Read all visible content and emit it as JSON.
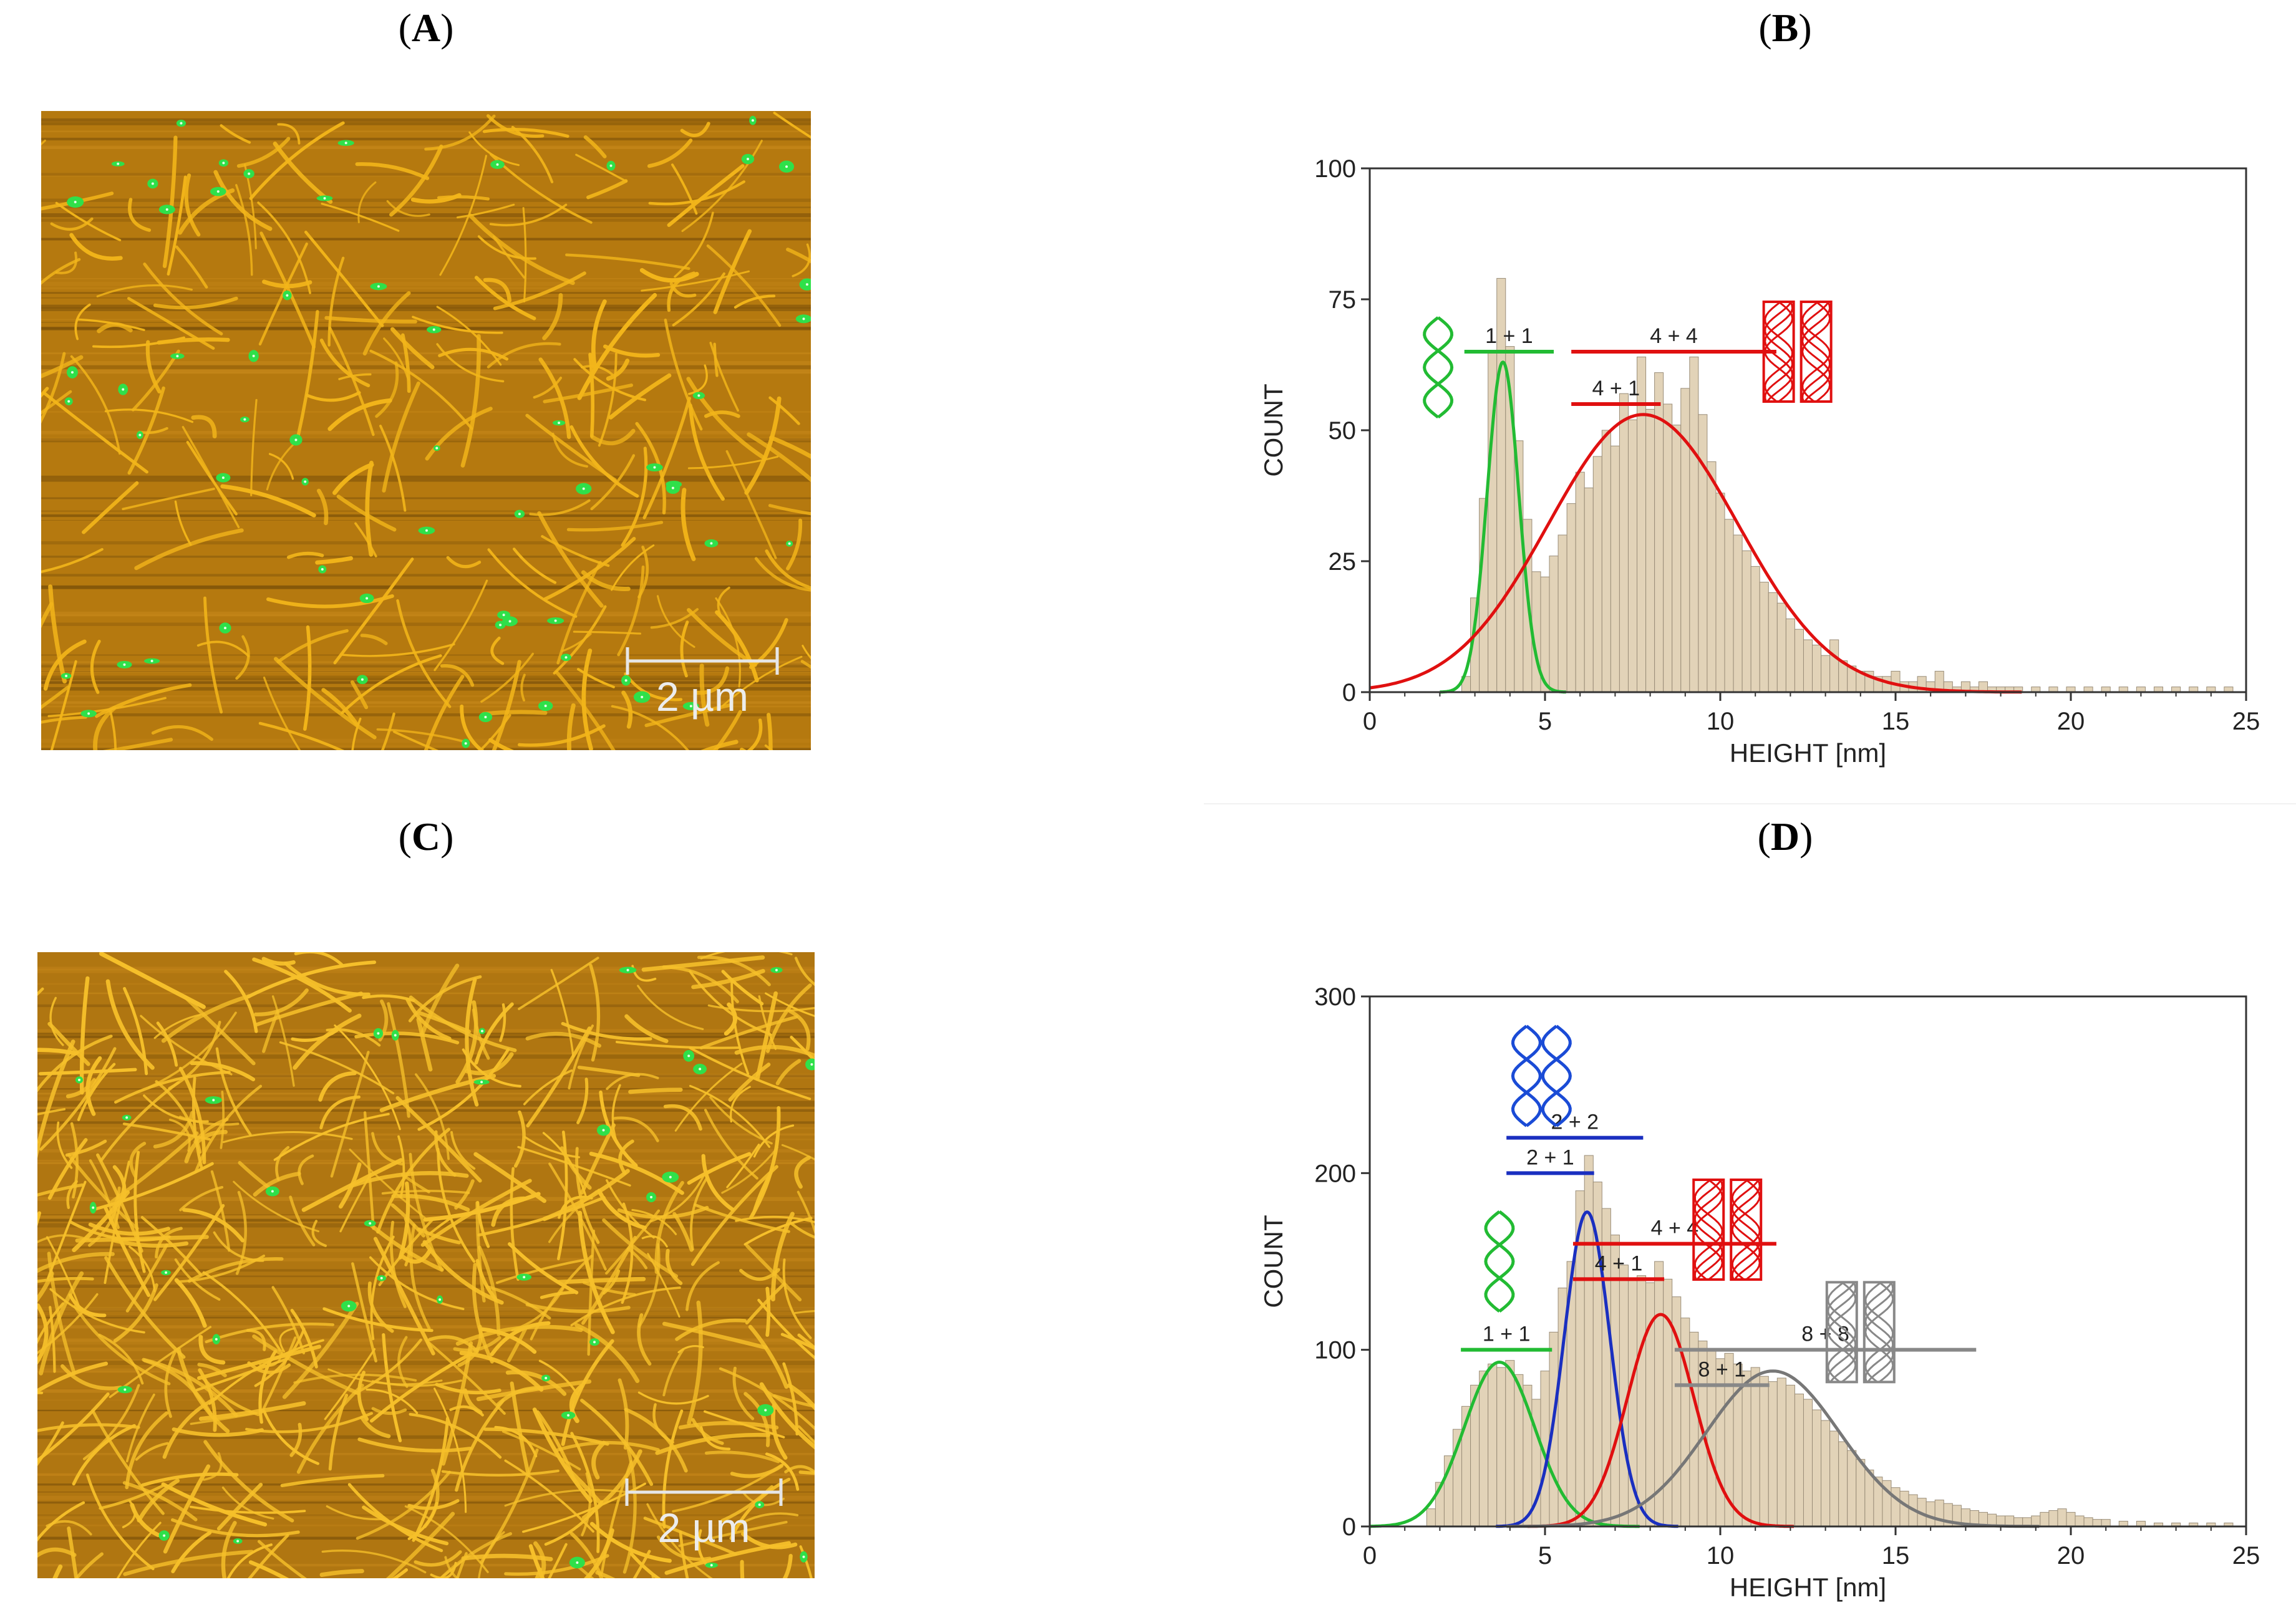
{
  "panels": {
    "A": {
      "open": "(",
      "letter": "A",
      "close": ")"
    },
    "B": {
      "open": "(",
      "letter": "B",
      "close": ")"
    },
    "C": {
      "open": "(",
      "letter": "C",
      "close": ")"
    },
    "D": {
      "open": "(",
      "letter": "D",
      "close": ")"
    }
  },
  "afm_A": {
    "scale_bar_label": "2 µm",
    "background_color": "#b5790f",
    "fibril_color": "#f2b51a",
    "highlight_color": "#2fe04a"
  },
  "afm_C": {
    "scale_bar_label": "2 µm",
    "background_color": "#b07611",
    "fibril_color": "#f6c02a",
    "highlight_color": "#2fe04a"
  },
  "chart_data": [
    {
      "panel": "B",
      "type": "bar",
      "xlabel": "HEIGHT  [nm]",
      "ylabel": "COUNT",
      "xlim": [
        0,
        25
      ],
      "ylim": [
        0,
        100
      ],
      "xticks": [
        0,
        5,
        10,
        15,
        20,
        25
      ],
      "yticks": [
        0,
        25,
        50,
        75,
        100
      ],
      "bin_width": 0.25,
      "bar_color": "#e2d3b8",
      "bins": [
        {
          "x": 2.75,
          "y": 3
        },
        {
          "x": 3.0,
          "y": 18
        },
        {
          "x": 3.25,
          "y": 37
        },
        {
          "x": 3.5,
          "y": 65
        },
        {
          "x": 3.75,
          "y": 79
        },
        {
          "x": 4.0,
          "y": 66
        },
        {
          "x": 4.25,
          "y": 48
        },
        {
          "x": 4.5,
          "y": 33
        },
        {
          "x": 4.75,
          "y": 23
        },
        {
          "x": 5.0,
          "y": 22
        },
        {
          "x": 5.25,
          "y": 26
        },
        {
          "x": 5.5,
          "y": 30
        },
        {
          "x": 5.75,
          "y": 36
        },
        {
          "x": 6.0,
          "y": 42
        },
        {
          "x": 6.25,
          "y": 39
        },
        {
          "x": 6.5,
          "y": 45
        },
        {
          "x": 6.75,
          "y": 50
        },
        {
          "x": 7.0,
          "y": 47
        },
        {
          "x": 7.25,
          "y": 57
        },
        {
          "x": 7.5,
          "y": 52
        },
        {
          "x": 7.75,
          "y": 64
        },
        {
          "x": 8.0,
          "y": 54
        },
        {
          "x": 8.25,
          "y": 61
        },
        {
          "x": 8.5,
          "y": 55
        },
        {
          "x": 8.75,
          "y": 51
        },
        {
          "x": 9.0,
          "y": 58
        },
        {
          "x": 9.25,
          "y": 64
        },
        {
          "x": 9.5,
          "y": 53
        },
        {
          "x": 9.75,
          "y": 44
        },
        {
          "x": 10.0,
          "y": 38
        },
        {
          "x": 10.25,
          "y": 33
        },
        {
          "x": 10.5,
          "y": 30
        },
        {
          "x": 10.75,
          "y": 27
        },
        {
          "x": 11.0,
          "y": 24
        },
        {
          "x": 11.25,
          "y": 21
        },
        {
          "x": 11.5,
          "y": 19
        },
        {
          "x": 11.75,
          "y": 17
        },
        {
          "x": 12.0,
          "y": 14
        },
        {
          "x": 12.25,
          "y": 12
        },
        {
          "x": 12.5,
          "y": 10
        },
        {
          "x": 12.75,
          "y": 9
        },
        {
          "x": 13.0,
          "y": 7
        },
        {
          "x": 13.25,
          "y": 10
        },
        {
          "x": 13.5,
          "y": 6
        },
        {
          "x": 13.75,
          "y": 5
        },
        {
          "x": 14.0,
          "y": 4
        },
        {
          "x": 14.25,
          "y": 4
        },
        {
          "x": 14.5,
          "y": 3
        },
        {
          "x": 14.75,
          "y": 3
        },
        {
          "x": 15.0,
          "y": 4
        },
        {
          "x": 15.25,
          "y": 2
        },
        {
          "x": 15.5,
          "y": 2
        },
        {
          "x": 15.75,
          "y": 3
        },
        {
          "x": 16.0,
          "y": 2
        },
        {
          "x": 16.25,
          "y": 4
        },
        {
          "x": 16.5,
          "y": 2
        },
        {
          "x": 16.75,
          "y": 1
        },
        {
          "x": 17.0,
          "y": 2
        },
        {
          "x": 17.25,
          "y": 1
        },
        {
          "x": 17.5,
          "y": 2
        },
        {
          "x": 17.75,
          "y": 1
        },
        {
          "x": 18.0,
          "y": 1
        },
        {
          "x": 18.25,
          "y": 1
        },
        {
          "x": 18.5,
          "y": 1
        },
        {
          "x": 19.0,
          "y": 1
        },
        {
          "x": 19.5,
          "y": 1
        },
        {
          "x": 20.0,
          "y": 1
        },
        {
          "x": 20.5,
          "y": 1
        },
        {
          "x": 21.0,
          "y": 1
        },
        {
          "x": 21.5,
          "y": 1
        },
        {
          "x": 22.0,
          "y": 1
        },
        {
          "x": 22.5,
          "y": 1
        },
        {
          "x": 23.0,
          "y": 1
        },
        {
          "x": 23.5,
          "y": 1
        },
        {
          "x": 24.0,
          "y": 1
        },
        {
          "x": 24.5,
          "y": 1
        }
      ],
      "fits": [
        {
          "color": "#22bb33",
          "mean": 3.8,
          "sigma": 0.45,
          "amp": 63
        },
        {
          "color": "#e01010",
          "mean": 7.8,
          "sigma": 2.7,
          "amp": 53
        }
      ],
      "fit_lines": [
        {
          "color": "#22bb33",
          "x0": 2.7,
          "x1": 5.25,
          "y": 65,
          "label": "1 + 1"
        },
        {
          "color": "#e01010",
          "x0": 5.75,
          "x1": 11.6,
          "y": 65,
          "label": "4 + 4"
        },
        {
          "color": "#e01010",
          "x0": 5.75,
          "x1": 8.3,
          "y": 55,
          "label": "4 + 1"
        }
      ],
      "icons": [
        {
          "kind": "single-helix",
          "color": "#22bb33",
          "x": 1.95,
          "y": 62
        },
        {
          "kind": "bundle",
          "color": "#e01010",
          "x": 12.2,
          "y": 65
        }
      ]
    },
    {
      "panel": "D",
      "type": "bar",
      "xlabel": "HEIGHT  [nm]",
      "ylabel": "COUNT",
      "xlim": [
        0,
        25
      ],
      "ylim": [
        0,
        300
      ],
      "xticks": [
        0,
        5,
        10,
        15,
        20,
        25
      ],
      "yticks": [
        0,
        100,
        200,
        300
      ],
      "bin_width": 0.25,
      "bar_color": "#e2d3b8",
      "bins": [
        {
          "x": 1.75,
          "y": 10
        },
        {
          "x": 2.0,
          "y": 25
        },
        {
          "x": 2.25,
          "y": 40
        },
        {
          "x": 2.5,
          "y": 55
        },
        {
          "x": 2.75,
          "y": 68
        },
        {
          "x": 3.0,
          "y": 80
        },
        {
          "x": 3.25,
          "y": 88
        },
        {
          "x": 3.5,
          "y": 92
        },
        {
          "x": 3.75,
          "y": 90
        },
        {
          "x": 4.0,
          "y": 94
        },
        {
          "x": 4.25,
          "y": 86
        },
        {
          "x": 4.5,
          "y": 80
        },
        {
          "x": 4.75,
          "y": 72
        },
        {
          "x": 5.0,
          "y": 88
        },
        {
          "x": 5.25,
          "y": 110
        },
        {
          "x": 5.5,
          "y": 135
        },
        {
          "x": 5.75,
          "y": 150
        },
        {
          "x": 6.0,
          "y": 190
        },
        {
          "x": 6.25,
          "y": 210
        },
        {
          "x": 6.5,
          "y": 195
        },
        {
          "x": 6.75,
          "y": 180
        },
        {
          "x": 7.0,
          "y": 165
        },
        {
          "x": 7.25,
          "y": 148
        },
        {
          "x": 7.5,
          "y": 140
        },
        {
          "x": 7.75,
          "y": 142
        },
        {
          "x": 8.0,
          "y": 138
        },
        {
          "x": 8.25,
          "y": 150
        },
        {
          "x": 8.5,
          "y": 140
        },
        {
          "x": 8.75,
          "y": 130
        },
        {
          "x": 9.0,
          "y": 118
        },
        {
          "x": 9.25,
          "y": 110
        },
        {
          "x": 9.5,
          "y": 105
        },
        {
          "x": 9.75,
          "y": 100
        },
        {
          "x": 10.0,
          "y": 95
        },
        {
          "x": 10.25,
          "y": 98
        },
        {
          "x": 10.5,
          "y": 92
        },
        {
          "x": 10.75,
          "y": 88
        },
        {
          "x": 11.0,
          "y": 90
        },
        {
          "x": 11.25,
          "y": 85
        },
        {
          "x": 11.5,
          "y": 82
        },
        {
          "x": 11.75,
          "y": 84
        },
        {
          "x": 12.0,
          "y": 80
        },
        {
          "x": 12.25,
          "y": 75
        },
        {
          "x": 12.5,
          "y": 72
        },
        {
          "x": 12.75,
          "y": 66
        },
        {
          "x": 13.0,
          "y": 60
        },
        {
          "x": 13.25,
          "y": 54
        },
        {
          "x": 13.5,
          "y": 48
        },
        {
          "x": 13.75,
          "y": 43
        },
        {
          "x": 14.0,
          "y": 38
        },
        {
          "x": 14.25,
          "y": 32
        },
        {
          "x": 14.5,
          "y": 28
        },
        {
          "x": 14.75,
          "y": 26
        },
        {
          "x": 15.0,
          "y": 22
        },
        {
          "x": 15.25,
          "y": 20
        },
        {
          "x": 15.5,
          "y": 18
        },
        {
          "x": 15.75,
          "y": 16
        },
        {
          "x": 16.0,
          "y": 14
        },
        {
          "x": 16.25,
          "y": 15
        },
        {
          "x": 16.5,
          "y": 13
        },
        {
          "x": 16.75,
          "y": 12
        },
        {
          "x": 17.0,
          "y": 10
        },
        {
          "x": 17.25,
          "y": 9
        },
        {
          "x": 17.5,
          "y": 8
        },
        {
          "x": 17.75,
          "y": 7
        },
        {
          "x": 18.0,
          "y": 6
        },
        {
          "x": 18.25,
          "y": 6
        },
        {
          "x": 18.5,
          "y": 5
        },
        {
          "x": 18.75,
          "y": 5
        },
        {
          "x": 19.0,
          "y": 6
        },
        {
          "x": 19.25,
          "y": 8
        },
        {
          "x": 19.5,
          "y": 9
        },
        {
          "x": 19.75,
          "y": 10
        },
        {
          "x": 20.0,
          "y": 8
        },
        {
          "x": 20.25,
          "y": 6
        },
        {
          "x": 20.5,
          "y": 5
        },
        {
          "x": 20.75,
          "y": 4
        },
        {
          "x": 21.0,
          "y": 4
        },
        {
          "x": 21.5,
          "y": 3
        },
        {
          "x": 22.0,
          "y": 3
        },
        {
          "x": 22.5,
          "y": 2
        },
        {
          "x": 23.0,
          "y": 2
        },
        {
          "x": 23.5,
          "y": 2
        },
        {
          "x": 24.0,
          "y": 2
        },
        {
          "x": 24.5,
          "y": 2
        }
      ],
      "fits": [
        {
          "color": "#22bb33",
          "mean": 3.7,
          "sigma": 1.0,
          "amp": 93
        },
        {
          "color": "#1a2fc0",
          "mean": 6.2,
          "sigma": 0.65,
          "amp": 178
        },
        {
          "color": "#e01010",
          "mean": 8.3,
          "sigma": 0.95,
          "amp": 120
        },
        {
          "color": "#777777",
          "mean": 11.5,
          "sigma": 1.9,
          "amp": 88
        }
      ],
      "fit_lines": [
        {
          "color": "#22bb33",
          "x0": 2.6,
          "x1": 5.2,
          "y": 100,
          "label": "1 + 1"
        },
        {
          "color": "#1a2fc0",
          "x0": 3.9,
          "x1": 7.8,
          "y": 220,
          "label": "2 + 2"
        },
        {
          "color": "#1a2fc0",
          "x0": 3.9,
          "x1": 6.4,
          "y": 200,
          "label": "2 + 1"
        },
        {
          "color": "#e01010",
          "x0": 5.8,
          "x1": 11.6,
          "y": 160,
          "label": "4 + 4"
        },
        {
          "color": "#e01010",
          "x0": 5.8,
          "x1": 8.4,
          "y": 140,
          "label": "4 + 1"
        },
        {
          "color": "#888888",
          "x0": 8.7,
          "x1": 17.3,
          "y": 100,
          "label": "8 + 8"
        },
        {
          "color": "#888888",
          "x0": 8.7,
          "x1": 11.4,
          "y": 80,
          "label": "8 + 1"
        }
      ],
      "icons": [
        {
          "kind": "double-helix-pair",
          "color": "#1a4bd6",
          "x": 4.9,
          "y": 255
        },
        {
          "kind": "bundle",
          "color": "#e01010",
          "x": 10.2,
          "y": 168
        },
        {
          "kind": "single-helix",
          "color": "#22bb33",
          "x": 3.7,
          "y": 150
        },
        {
          "kind": "bundle",
          "color": "#888888",
          "x": 14.0,
          "y": 110
        }
      ]
    }
  ]
}
